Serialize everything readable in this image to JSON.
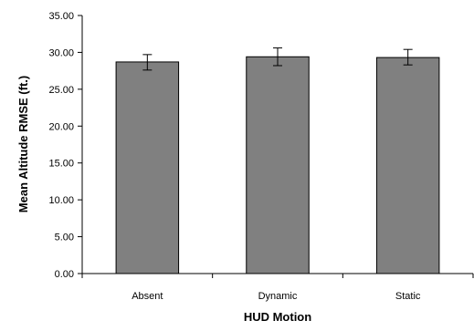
{
  "chart_data": {
    "type": "bar",
    "title": "",
    "xlabel": "HUD Motion",
    "ylabel": "Mean Altitude RMSE (ft.)",
    "categories": [
      "Absent",
      "Dynamic",
      "Static"
    ],
    "values": [
      28.7,
      29.4,
      29.3
    ],
    "error_bars": [
      {
        "low": 27.6,
        "high": 29.7
      },
      {
        "low": 28.2,
        "high": 30.6
      },
      {
        "low": 28.3,
        "high": 30.4
      }
    ],
    "ylim": [
      0,
      35
    ],
    "yticks": [
      "0.00",
      "5.00",
      "10.00",
      "15.00",
      "20.00",
      "25.00",
      "30.00",
      "35.00"
    ],
    "grid": false,
    "legend": "none",
    "bar_color": "#808080",
    "bar_edge_color": "#000000"
  }
}
